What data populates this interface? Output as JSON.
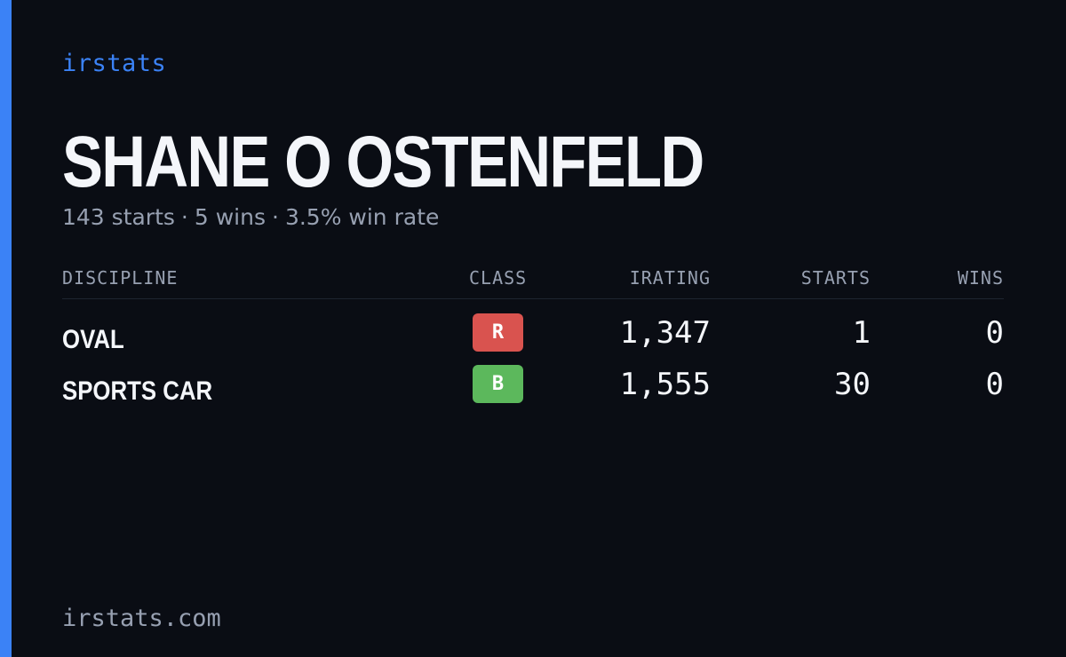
{
  "brand": "irstats",
  "driver": {
    "name": "SHANE O OSTENFELD",
    "summary": {
      "starts": "143 starts",
      "wins": "5 wins",
      "win_rate": "3.5% win rate",
      "separator": "·"
    }
  },
  "table": {
    "headers": {
      "discipline": "DISCIPLINE",
      "class": "CLASS",
      "irating": "IRATING",
      "starts": "STARTS",
      "wins": "WINS"
    },
    "rows": [
      {
        "discipline": "OVAL",
        "class": "R",
        "class_color": "#d9534f",
        "irating": "1,347",
        "starts": "1",
        "wins": "0"
      },
      {
        "discipline": "SPORTS CAR",
        "class": "B",
        "class_color": "#5cb85c",
        "irating": "1,555",
        "starts": "30",
        "wins": "0"
      }
    ]
  },
  "footer": {
    "domain": "irstats.com"
  },
  "colors": {
    "background": "#0a0d14",
    "accent": "#3b82f6",
    "muted_text": "#97a0b1"
  }
}
